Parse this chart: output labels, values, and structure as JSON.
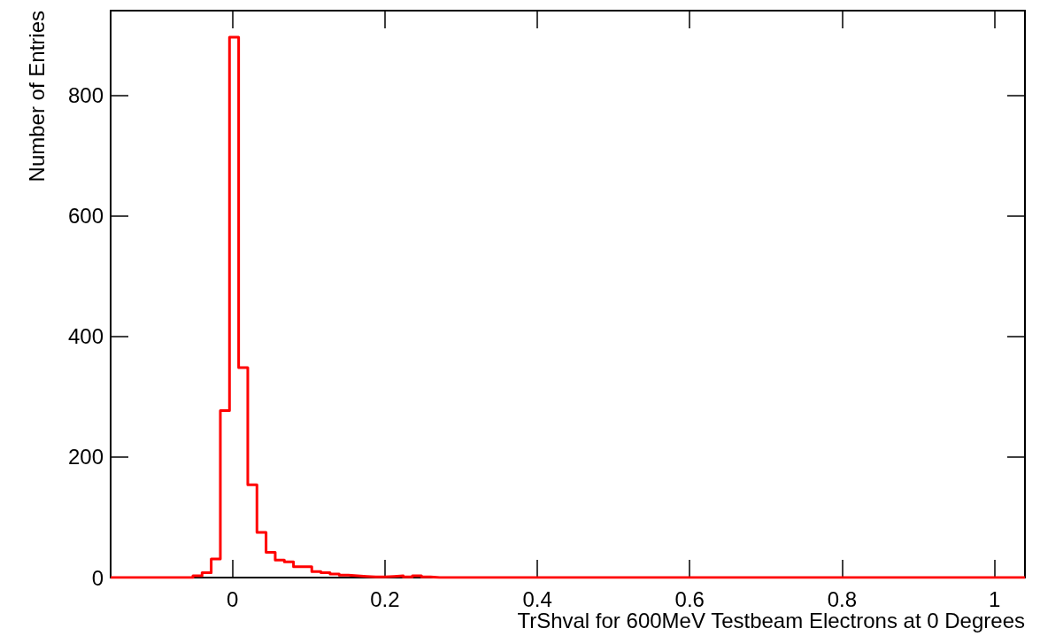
{
  "chart_data": {
    "type": "histogram",
    "xlabel": "TrShval for 600MeV Testbeam Electrons at 0 Degrees",
    "ylabel": "Number of Entries",
    "color": "#ff0000",
    "bins": [
      -0.16,
      -0.148,
      -0.136,
      -0.124,
      -0.112,
      -0.1,
      -0.088,
      -0.076,
      -0.064,
      -0.052,
      -0.04,
      -0.028,
      -0.016,
      -0.004,
      0.008,
      0.02,
      0.032,
      0.044,
      0.056,
      0.068,
      0.08,
      0.092,
      0.104,
      0.116,
      0.128,
      0.14,
      0.152,
      0.164,
      0.176,
      0.188,
      0.2,
      0.212,
      0.224,
      0.236,
      0.248,
      0.26,
      0.272,
      0.284,
      0.296,
      0.308,
      0.32,
      0.332,
      0.344,
      0.356,
      0.368,
      0.38,
      0.392,
      0.404,
      0.416,
      0.428,
      0.44,
      0.452,
      0.464,
      0.476,
      0.488,
      0.5,
      0.512,
      0.524,
      0.536,
      0.548,
      0.56,
      0.572,
      0.584,
      0.596,
      0.608,
      0.62,
      0.632,
      0.644,
      0.656,
      0.668,
      0.68,
      0.692,
      0.704,
      0.716,
      0.728,
      0.74,
      0.752,
      0.764,
      0.776,
      0.788,
      0.8,
      0.812,
      0.824,
      0.836,
      0.848,
      0.86,
      0.872,
      0.884,
      0.896,
      0.908,
      0.92,
      0.932,
      0.944,
      0.956,
      0.968,
      0.98,
      0.992,
      1.004,
      1.016,
      1.028,
      1.04
    ],
    "values": [
      0,
      0,
      0,
      0,
      0,
      0,
      0,
      0,
      0,
      3,
      8,
      31,
      277,
      896,
      348,
      154,
      75,
      42,
      29,
      26,
      18,
      18,
      10,
      8,
      6,
      4,
      3,
      2,
      1,
      1,
      2,
      3,
      1,
      3,
      1,
      0,
      0,
      0,
      0,
      0,
      0,
      0,
      0,
      0,
      0,
      0,
      0,
      0,
      0,
      0,
      0,
      0,
      0,
      0,
      0,
      0,
      0,
      0,
      0,
      0,
      0,
      0,
      0,
      0,
      0,
      0,
      0,
      0,
      0,
      0,
      0,
      0,
      0,
      0,
      0,
      0,
      0,
      0,
      0,
      0,
      0,
      0,
      0,
      0,
      0,
      0,
      0,
      0,
      0,
      0,
      0,
      0,
      0,
      0,
      0,
      0,
      0,
      0,
      0,
      0
    ],
    "xlim": [
      -0.16,
      1.04
    ],
    "xticks": [
      0,
      0.2,
      0.4,
      0.6,
      0.8,
      1
    ],
    "ylim": [
      0,
      940
    ],
    "yticks": [
      0,
      200,
      400,
      600,
      800
    ],
    "grid": false
  }
}
